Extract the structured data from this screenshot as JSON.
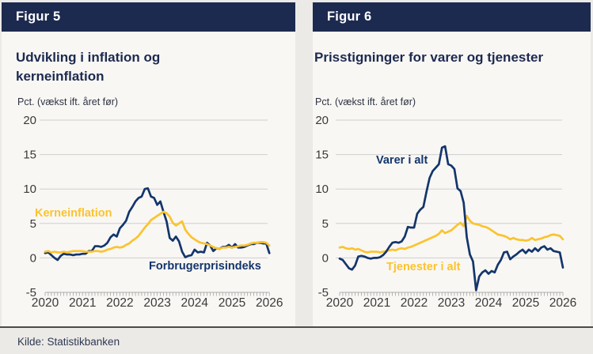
{
  "source": "Kilde: Statistikbanken",
  "theme": {
    "navy": "#1d2a50",
    "navy_line": "#14356b",
    "yellow_line": "#fbc32e",
    "grid": "#cfcfcf",
    "tick_text": "#3a3a3a",
    "panel_bg": "#f8f7f4",
    "header_text": "#ffffff"
  },
  "figures": [
    {
      "header": "Figur 5",
      "title": "Udvikling i inflation og kerneinflation",
      "unit_label": "Pct. (vækst ift. året før)",
      "chart_data": {
        "type": "line",
        "x_unit": "monthly",
        "x_start_year": 2020,
        "x_end_year": 2026,
        "xticks": [
          2020,
          2021,
          2022,
          2023,
          2024,
          2025,
          2026
        ],
        "ylim": [
          -5,
          20
        ],
        "yticks": [
          20,
          15,
          10,
          5,
          0,
          -5
        ],
        "grid": true,
        "legend_position": "inline-labels",
        "series": [
          {
            "name": "Forbrugerprisindeks",
            "color": "#14356b",
            "values": [
              0.7,
              0.8,
              0.4,
              0.0,
              -0.3,
              0.3,
              0.6,
              0.5,
              0.5,
              0.4,
              0.5,
              0.5,
              0.6,
              0.6,
              1.0,
              1.0,
              1.7,
              1.7,
              1.6,
              1.8,
              2.2,
              3.0,
              3.4,
              3.1,
              4.3,
              4.8,
              5.4,
              6.7,
              7.4,
              8.2,
              8.7,
              8.9,
              10.0,
              10.1,
              8.9,
              8.7,
              7.7,
              8.2,
              6.7,
              5.3,
              2.9,
              2.5,
              3.1,
              2.4,
              0.9,
              0.1,
              0.3,
              0.4,
              1.2,
              0.8,
              0.9,
              0.8,
              2.2,
              1.8,
              1.0,
              1.4,
              1.3,
              1.6,
              1.6,
              1.9,
              1.5,
              2.0,
              1.5,
              1.5,
              1.6,
              1.8,
              2.0,
              2.0,
              2.2,
              2.2,
              2.1,
              2.1,
              0.7
            ]
          },
          {
            "name": "Kerneinflation",
            "color": "#fbc32e",
            "values": [
              0.9,
              1.0,
              0.8,
              0.9,
              0.8,
              0.8,
              0.9,
              0.8,
              0.9,
              1.0,
              1.0,
              1.0,
              1.0,
              0.9,
              0.9,
              0.9,
              1.0,
              1.0,
              0.9,
              1.0,
              1.2,
              1.3,
              1.5,
              1.6,
              1.5,
              1.6,
              1.9,
              2.1,
              2.5,
              2.8,
              3.2,
              3.8,
              4.4,
              4.9,
              5.5,
              5.8,
              6.1,
              6.4,
              6.7,
              6.5,
              6.0,
              5.1,
              4.7,
              5.0,
              5.3,
              4.1,
              3.5,
              3.0,
              2.7,
              2.4,
              2.2,
              2.1,
              2.0,
              1.8,
              1.6,
              1.4,
              1.3,
              1.5,
              1.5,
              1.6,
              1.5,
              1.6,
              1.7,
              1.8,
              1.8,
              1.9,
              2.1,
              2.2,
              2.2,
              2.3,
              2.3,
              2.2,
              1.8
            ]
          }
        ]
      }
    },
    {
      "header": "Figur 6",
      "title": "Prisstigninger for varer og tjenester",
      "unit_label": "Pct. (vækst ift. året før)",
      "chart_data": {
        "type": "line",
        "x_unit": "monthly",
        "x_start_year": 2020,
        "x_end_year": 2026,
        "xticks": [
          2020,
          2021,
          2022,
          2023,
          2024,
          2025,
          2026
        ],
        "ylim": [
          -5,
          20
        ],
        "yticks": [
          20,
          15,
          10,
          5,
          0,
          -5
        ],
        "grid": true,
        "legend_position": "inline-labels",
        "series": [
          {
            "name": "Tjenester i alt",
            "color": "#fbc32e",
            "values": [
              1.5,
              1.6,
              1.4,
              1.3,
              1.4,
              1.2,
              1.3,
              1.1,
              0.9,
              0.8,
              0.9,
              0.9,
              0.9,
              0.8,
              0.9,
              1.0,
              1.1,
              1.2,
              1.1,
              1.3,
              1.4,
              1.3,
              1.5,
              1.6,
              1.8,
              2.0,
              2.2,
              2.4,
              2.6,
              2.8,
              3.0,
              3.2,
              3.5,
              4.0,
              3.6,
              3.8,
              4.0,
              4.4,
              4.8,
              5.1,
              4.6,
              6.1,
              5.4,
              5.0,
              4.9,
              4.8,
              4.6,
              4.5,
              4.3,
              4.0,
              3.7,
              3.4,
              3.3,
              3.2,
              3.0,
              2.7,
              2.9,
              2.7,
              2.6,
              2.6,
              2.5,
              2.6,
              2.9,
              2.6,
              2.7,
              2.8,
              3.0,
              3.1,
              3.3,
              3.4,
              3.3,
              3.2,
              2.7
            ]
          },
          {
            "name": "Varer i alt",
            "color": "#14356b",
            "values": [
              -0.1,
              -0.3,
              -0.9,
              -1.5,
              -1.7,
              -1.1,
              0.2,
              0.3,
              0.2,
              0.0,
              -0.1,
              0.0,
              0.0,
              0.1,
              0.4,
              0.9,
              1.6,
              2.2,
              2.3,
              2.2,
              2.4,
              3.1,
              4.5,
              4.4,
              4.4,
              6.4,
              7.0,
              7.4,
              9.6,
              11.6,
              12.6,
              13.1,
              13.6,
              16.0,
              16.2,
              13.6,
              13.4,
              12.9,
              10.1,
              9.7,
              8.0,
              3.0,
              0.5,
              -0.5,
              -4.7,
              -2.7,
              -2.1,
              -1.8,
              -2.3,
              -1.9,
              -2.1,
              -1.0,
              -0.3,
              0.8,
              0.9,
              -0.2,
              0.2,
              0.5,
              0.9,
              1.2,
              0.7,
              1.2,
              0.9,
              1.4,
              1.0,
              1.5,
              1.7,
              1.2,
              1.4,
              1.0,
              0.9,
              0.8,
              -1.4
            ]
          }
        ]
      }
    }
  ]
}
